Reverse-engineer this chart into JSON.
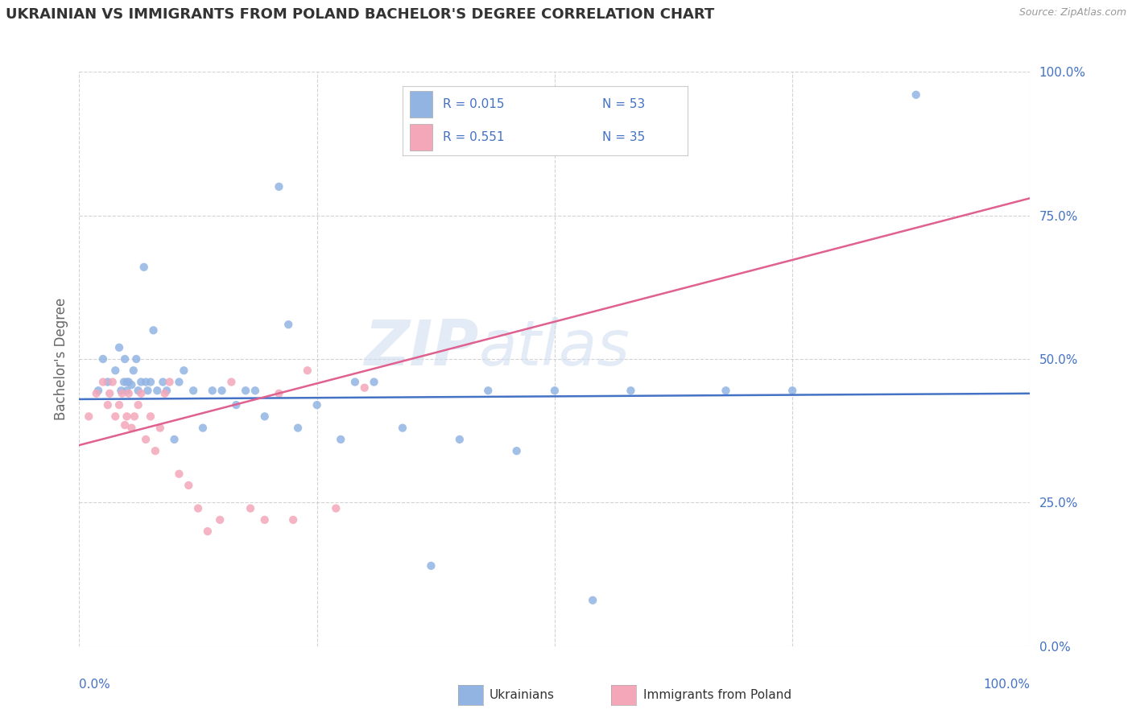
{
  "title": "UKRAINIAN VS IMMIGRANTS FROM POLAND BACHELOR'S DEGREE CORRELATION CHART",
  "source": "Source: ZipAtlas.com",
  "ylabel": "Bachelor's Degree",
  "legend_label1": "Ukrainians",
  "legend_label2": "Immigrants from Poland",
  "legend_r1": "R = 0.015",
  "legend_n1": "N = 53",
  "legend_r2": "R = 0.551",
  "legend_n2": "N = 35",
  "watermark_zip": "ZIP",
  "watermark_atlas": "atlas",
  "blue_color": "#92b4e3",
  "pink_color": "#f4a7b9",
  "blue_line_color": "#4472c4",
  "pink_line_color": "#e06090",
  "title_color": "#333333",
  "axis_label_color": "#4472c4",
  "grid_color": "#c8c8c8",
  "background_color": "#ffffff",
  "ukrainians_x": [
    0.02,
    0.025,
    0.03,
    0.038,
    0.042,
    0.044,
    0.047,
    0.048,
    0.05,
    0.05,
    0.052,
    0.055,
    0.057,
    0.06,
    0.062,
    0.065,
    0.068,
    0.07,
    0.072,
    0.075,
    0.078,
    0.082,
    0.088,
    0.092,
    0.1,
    0.105,
    0.11,
    0.12,
    0.13,
    0.14,
    0.15,
    0.165,
    0.175,
    0.185,
    0.195,
    0.21,
    0.22,
    0.23,
    0.25,
    0.275,
    0.29,
    0.31,
    0.34,
    0.37,
    0.4,
    0.43,
    0.46,
    0.5,
    0.54,
    0.58,
    0.68,
    0.75,
    0.88
  ],
  "ukrainians_y": [
    0.445,
    0.5,
    0.46,
    0.48,
    0.52,
    0.445,
    0.46,
    0.5,
    0.445,
    0.46,
    0.46,
    0.455,
    0.48,
    0.5,
    0.445,
    0.46,
    0.66,
    0.46,
    0.445,
    0.46,
    0.55,
    0.445,
    0.46,
    0.445,
    0.36,
    0.46,
    0.48,
    0.445,
    0.38,
    0.445,
    0.445,
    0.42,
    0.445,
    0.445,
    0.4,
    0.8,
    0.56,
    0.38,
    0.42,
    0.36,
    0.46,
    0.46,
    0.38,
    0.14,
    0.36,
    0.445,
    0.34,
    0.445,
    0.08,
    0.445,
    0.445,
    0.445,
    0.96
  ],
  "poland_x": [
    0.01,
    0.018,
    0.025,
    0.03,
    0.032,
    0.035,
    0.038,
    0.042,
    0.045,
    0.048,
    0.05,
    0.052,
    0.055,
    0.058,
    0.062,
    0.065,
    0.07,
    0.075,
    0.08,
    0.085,
    0.09,
    0.095,
    0.105,
    0.115,
    0.125,
    0.135,
    0.148,
    0.16,
    0.18,
    0.195,
    0.21,
    0.225,
    0.24,
    0.27,
    0.3
  ],
  "poland_y": [
    0.4,
    0.44,
    0.46,
    0.42,
    0.44,
    0.46,
    0.4,
    0.42,
    0.44,
    0.385,
    0.4,
    0.44,
    0.38,
    0.4,
    0.42,
    0.44,
    0.36,
    0.4,
    0.34,
    0.38,
    0.44,
    0.46,
    0.3,
    0.28,
    0.24,
    0.2,
    0.22,
    0.46,
    0.24,
    0.22,
    0.44,
    0.22,
    0.48,
    0.24,
    0.45
  ],
  "ylim": [
    0.0,
    1.0
  ],
  "xlim": [
    0.0,
    1.0
  ],
  "yticks": [
    0.0,
    0.25,
    0.5,
    0.75,
    1.0
  ],
  "ytick_labels": [
    "0.0%",
    "25.0%",
    "50.0%",
    "75.0%",
    "100.0%"
  ],
  "blue_trend_x0": 0.0,
  "blue_trend_x1": 1.0,
  "blue_trend_y0": 0.43,
  "blue_trend_y1": 0.44,
  "pink_trend_x0": 0.0,
  "pink_trend_x1": 1.0,
  "pink_trend_y0": 0.35,
  "pink_trend_y1": 0.78
}
